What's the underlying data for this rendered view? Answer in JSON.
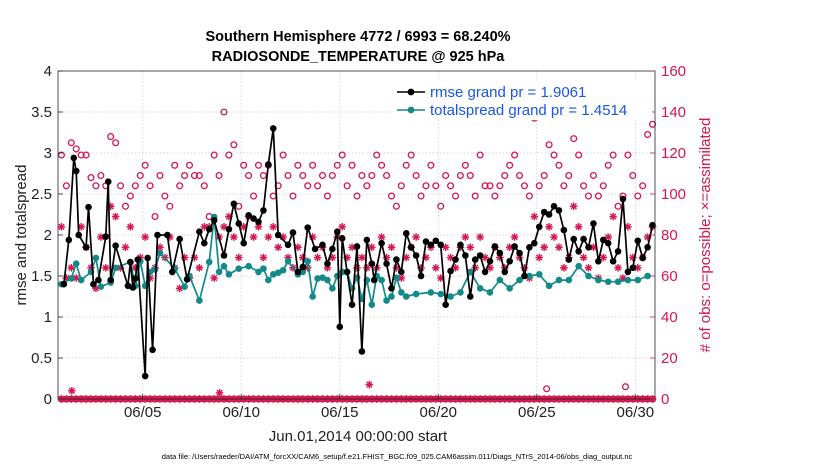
{
  "chart_data": {
    "type": "line",
    "title": "Southern Hemisphere 4772 / 6993 = 68.240%",
    "subtitle": "RADIOSONDE_TEMPERATURE @ 925 hPa",
    "xlabel": "Jun.01,2014 00:00:00 start",
    "ylabel": "rmse and totalspread",
    "ylabel_right": "# of obs: o=possible; ×=assimilated",
    "footer": "data file: /Users/raeder/DAI/ATM_forcXX/CAM6_setup/f.e21.FHIST_BGC.f09_025.CAM6assim.011/Diags_NTrS_2014-06/obs_diag_output.nc",
    "xlim": [
      0.7,
      31.0
    ],
    "ylim": [
      0,
      4
    ],
    "ylim_right": [
      0,
      160
    ],
    "xticks": [
      5,
      10,
      15,
      20,
      25,
      30
    ],
    "xtick_labels": [
      "06/05",
      "06/10",
      "06/15",
      "06/20",
      "06/25",
      "06/30"
    ],
    "yticks": [
      0,
      0.5,
      1,
      1.5,
      2,
      2.5,
      3,
      3.5,
      4
    ],
    "ytick_labels": [
      "0",
      "0.5",
      "1",
      "1.5",
      "2",
      "2.5",
      "3",
      "3.5",
      "4"
    ],
    "yticks_right": [
      0,
      20,
      40,
      60,
      80,
      100,
      120,
      140,
      160
    ],
    "ytick_labels_right": [
      "0",
      "20",
      "40",
      "60",
      "80",
      "100",
      "120",
      "140",
      "160"
    ],
    "legend_location": "top-right",
    "colors": {
      "rmse": "#000000",
      "spread": "#138a8a",
      "obs": "#d5164f",
      "legend_text": "#1a56e0"
    },
    "series": [
      {
        "name": "rmse grand pr = 1.9061",
        "x": [
          1.0,
          1.25,
          1.5,
          1.625,
          1.75,
          2.125,
          2.25,
          2.5,
          2.75,
          3.125,
          3.25,
          3.375,
          3.625,
          4.25,
          4.375,
          4.5,
          4.625,
          4.75,
          5.125,
          5.25,
          5.5,
          5.75,
          6.25,
          6.5,
          6.875,
          7.25,
          7.875,
          8.125,
          8.375,
          8.625,
          9.125,
          9.375,
          9.625,
          9.875,
          10.125,
          10.375,
          10.625,
          10.875,
          11.125,
          11.375,
          11.625,
          11.875,
          12.375,
          12.625,
          12.875,
          13.125,
          13.375,
          13.75,
          14.125,
          14.375,
          14.625,
          14.875,
          15.0,
          15.125,
          15.375,
          15.625,
          15.875,
          16.125,
          16.375,
          16.625,
          16.75,
          17.125,
          17.375,
          17.625,
          17.875,
          18.125,
          18.375,
          18.625,
          18.875,
          19.125,
          19.375,
          19.625,
          19.875,
          20.125,
          20.375,
          20.625,
          20.875,
          21.125,
          21.375,
          21.625,
          21.875,
          22.125,
          22.375,
          22.625,
          22.875,
          23.125,
          23.375,
          23.625,
          23.875,
          24.125,
          24.375,
          24.625,
          24.875,
          25.125,
          25.375,
          25.625,
          25.875,
          26.125,
          26.375,
          26.625,
          26.875,
          27.125,
          27.375,
          27.625,
          27.875,
          28.125,
          28.375,
          28.625,
          28.875,
          29.125,
          29.375,
          29.625,
          29.875,
          30.125,
          30.375,
          30.625,
          30.875
        ],
        "values": [
          1.4,
          1.94,
          2.94,
          2.78,
          2.0,
          1.85,
          2.34,
          1.4,
          1.45,
          1.98,
          2.65,
          1.45,
          1.87,
          1.38,
          1.67,
          1.36,
          1.47,
          1.7,
          0.28,
          1.72,
          0.6,
          2.0,
          2.0,
          1.55,
          1.95,
          1.46,
          2.04,
          1.9,
          2.07,
          2.18,
          1.75,
          2.07,
          2.38,
          2.14,
          1.9,
          2.24,
          2.2,
          2.16,
          2.3,
          2.86,
          3.3,
          2.0,
          1.88,
          2.03,
          1.55,
          1.61,
          2.09,
          1.83,
          1.88,
          1.65,
          1.83,
          2.04,
          0.88,
          1.96,
          1.55,
          1.15,
          1.86,
          0.58,
          1.94,
          1.65,
          1.45,
          1.9,
          1.65,
          1.35,
          1.7,
          1.55,
          2.02,
          1.85,
          1.75,
          1.5,
          1.92,
          1.88,
          1.93,
          1.88,
          1.15,
          1.56,
          1.7,
          1.88,
          1.75,
          1.25,
          1.7,
          1.75,
          1.55,
          1.68,
          1.86,
          1.78,
          1.55,
          1.68,
          1.86,
          1.78,
          1.5,
          1.85,
          1.9,
          2.1,
          2.28,
          2.25,
          2.35,
          2.3,
          2.06,
          1.7,
          1.95,
          1.8,
          1.95,
          1.85,
          2.14,
          1.68,
          1.94,
          1.9,
          1.68,
          1.8,
          2.44,
          1.55,
          1.6,
          1.93,
          1.72,
          1.85,
          2.12
        ],
        "marker": "filled-circle"
      },
      {
        "name": "totalspread grand pr = 1.4514",
        "x": [
          0.875,
          1.375,
          1.625,
          1.875,
          2.375,
          2.625,
          2.875,
          3.375,
          3.625,
          4.375,
          4.625,
          4.875,
          5.125,
          5.375,
          5.625,
          5.875,
          6.625,
          7.125,
          7.375,
          7.875,
          8.375,
          8.625,
          8.875,
          9.125,
          9.375,
          9.875,
          10.375,
          10.875,
          11.125,
          11.375,
          11.625,
          11.875,
          12.125,
          12.375,
          12.875,
          13.125,
          13.375,
          13.625,
          13.875,
          14.125,
          14.375,
          14.625,
          14.875,
          15.125,
          15.375,
          15.625,
          15.875,
          16.125,
          16.375,
          16.625,
          16.875,
          17.125,
          17.375,
          17.625,
          17.875,
          18.125,
          18.375,
          18.875,
          19.625,
          20.125,
          20.625,
          21.125,
          21.625,
          22.125,
          22.625,
          23.125,
          23.625,
          24.125,
          24.625,
          25.125,
          25.625,
          26.125,
          26.625,
          27.125,
          27.625,
          28.125,
          28.625,
          29.125,
          29.625,
          30.125,
          30.625
        ],
        "values": [
          1.4,
          1.47,
          1.65,
          1.45,
          1.55,
          1.72,
          1.37,
          1.42,
          1.6,
          1.67,
          1.38,
          1.68,
          1.38,
          1.55,
          1.58,
          1.78,
          1.59,
          1.37,
          1.5,
          1.2,
          1.67,
          2.22,
          1.55,
          1.62,
          1.52,
          1.59,
          1.62,
          1.55,
          1.59,
          1.45,
          1.52,
          1.54,
          1.57,
          1.68,
          1.52,
          1.55,
          1.68,
          1.25,
          1.47,
          1.48,
          1.45,
          1.35,
          1.5,
          1.55,
          1.55,
          1.35,
          1.48,
          1.22,
          1.45,
          1.15,
          1.5,
          1.45,
          1.2,
          1.25,
          1.48,
          1.3,
          1.25,
          1.28,
          1.3,
          1.28,
          1.25,
          1.3,
          1.55,
          1.35,
          1.3,
          1.45,
          1.35,
          1.45,
          1.5,
          1.52,
          1.38,
          1.45,
          1.45,
          1.62,
          1.5,
          1.45,
          1.43,
          1.43,
          1.45,
          1.45,
          1.5
        ],
        "marker": "filled-circle"
      },
      {
        "name": "# of obs possible",
        "axis": "right",
        "marker": "open-circle",
        "x": [
          0.875,
          1.125,
          1.375,
          1.625,
          1.875,
          2.125,
          2.375,
          2.625,
          2.875,
          3.125,
          3.375,
          3.625,
          3.875,
          4.125,
          4.375,
          4.625,
          4.875,
          5.125,
          5.375,
          5.625,
          5.875,
          6.125,
          6.375,
          6.625,
          6.875,
          7.125,
          7.375,
          7.625,
          7.875,
          8.125,
          8.375,
          8.625,
          8.875,
          9.125,
          9.375,
          9.625,
          9.875,
          10.125,
          10.375,
          10.625,
          10.875,
          11.125,
          11.375,
          11.625,
          11.875,
          12.125,
          12.375,
          12.625,
          12.875,
          13.125,
          13.375,
          13.625,
          13.875,
          14.125,
          14.375,
          14.625,
          14.875,
          15.125,
          15.375,
          15.625,
          15.875,
          16.125,
          16.375,
          16.625,
          16.875,
          17.125,
          17.375,
          17.625,
          17.875,
          18.125,
          18.375,
          18.625,
          18.875,
          19.125,
          19.375,
          19.625,
          19.875,
          20.125,
          20.375,
          20.625,
          20.875,
          21.125,
          21.375,
          21.625,
          21.875,
          22.125,
          22.375,
          22.625,
          22.875,
          23.125,
          23.375,
          23.625,
          23.875,
          24.125,
          24.375,
          24.625,
          24.875,
          25.125,
          25.375,
          25.625,
          25.875,
          26.125,
          26.375,
          26.625,
          26.875,
          27.125,
          27.375,
          27.625,
          27.875,
          28.125,
          28.375,
          28.625,
          28.875,
          29.125,
          29.375,
          29.625,
          29.875,
          30.125,
          30.375,
          30.625,
          30.875
        ],
        "values": [
          119,
          104,
          125,
          122,
          119,
          119,
          108,
          104,
          109,
          104,
          128,
          125,
          104,
          94,
          99,
          104,
          109,
          114,
          104,
          89,
          109,
          99,
          94,
          114,
          104,
          109,
          114,
          109,
          109,
          104,
          89,
          119,
          109,
          140,
          119,
          124,
          94,
          114,
          109,
          99,
          114,
          109,
          114,
          99,
          104,
          119,
          109,
          99,
          114,
          109,
          104,
          114,
          104,
          109,
          99,
          109,
          114,
          119,
          104,
          114,
          99,
          109,
          104,
          109,
          119,
          114,
          109,
          99,
          94,
          104,
          114,
          119,
          109,
          99,
          104,
          114,
          104,
          94,
          109,
          104,
          99,
          109,
          114,
          109,
          99,
          119,
          104,
          104,
          99,
          104,
          109,
          114,
          119,
          109,
          104,
          99,
          137,
          104,
          109,
          124,
          119,
          114,
          104,
          109,
          127,
          119,
          104,
          99,
          109,
          99,
          104,
          114,
          119,
          94,
          99,
          119,
          109,
          99,
          104,
          129,
          134
        ]
      },
      {
        "name": "# of obs assimilated",
        "axis": "right",
        "marker": "asterisk",
        "x": [
          0.875,
          1.125,
          1.375,
          1.625,
          1.875,
          2.125,
          2.375,
          2.625,
          2.875,
          3.125,
          3.375,
          3.625,
          3.875,
          4.125,
          4.375,
          4.625,
          4.875,
          5.125,
          5.375,
          5.625,
          5.875,
          6.125,
          6.375,
          6.625,
          6.875,
          7.125,
          7.375,
          7.625,
          7.875,
          8.125,
          8.375,
          8.625,
          8.875,
          9.125,
          9.375,
          9.625,
          9.875,
          10.125,
          10.375,
          10.625,
          10.875,
          11.125,
          11.375,
          11.625,
          11.875,
          12.125,
          12.375,
          12.625,
          12.875,
          13.125,
          13.375,
          13.625,
          13.875,
          14.125,
          14.375,
          14.625,
          14.875,
          15.125,
          15.375,
          15.625,
          15.875,
          16.125,
          16.375,
          16.625,
          16.875,
          17.125,
          17.375,
          17.625,
          17.875,
          18.125,
          18.375,
          18.625,
          18.875,
          19.125,
          19.375,
          19.625,
          19.875,
          20.125,
          20.375,
          20.625,
          20.875,
          21.125,
          21.375,
          21.625,
          21.875,
          22.125,
          22.375,
          22.625,
          22.875,
          23.125,
          23.375,
          23.625,
          23.875,
          24.125,
          24.375,
          24.625,
          24.875,
          25.125,
          25.375,
          25.625,
          25.875,
          26.125,
          26.375,
          26.625,
          26.875,
          27.125,
          27.375,
          27.625,
          27.875,
          28.125,
          28.375,
          28.625,
          28.875,
          29.125,
          29.375,
          29.625,
          29.875,
          30.125,
          30.375,
          30.625,
          30.875
        ],
        "values": [
          84,
          59,
          64,
          59,
          84,
          74,
          64,
          54,
          79,
          64,
          94,
          89,
          64,
          74,
          84,
          64,
          69,
          79,
          59,
          64,
          74,
          69,
          79,
          64,
          54,
          69,
          59,
          69,
          64,
          84,
          84,
          59,
          79,
          84,
          89,
          79,
          69,
          84,
          89,
          79,
          84,
          69,
          79,
          84,
          74,
          79,
          69,
          64,
          74,
          69,
          64,
          79,
          69,
          74,
          64,
          69,
          79,
          84,
          69,
          74,
          64,
          69,
          64,
          74,
          64,
          79,
          69,
          74,
          64,
          59,
          69,
          74,
          79,
          64,
          69,
          74,
          64,
          59,
          74,
          69,
          64,
          74,
          79,
          74,
          64,
          79,
          69,
          64,
          74,
          69,
          64,
          74,
          79,
          69,
          64,
          59,
          89,
          69,
          74,
          84,
          79,
          74,
          64,
          69,
          94,
          84,
          69,
          64,
          74,
          59,
          69,
          79,
          89,
          64,
          59,
          84,
          69,
          64,
          69,
          79,
          84
        ]
      }
    ],
    "obs_bottom": {
      "possible": [
        {
          "x": 25.5,
          "v": 5
        },
        {
          "x": 29.5,
          "v": 6
        }
      ],
      "assimilated_nonzero": [
        {
          "x": 1.4,
          "v": 4
        },
        {
          "x": 8.9,
          "v": 3
        },
        {
          "x": 16.5,
          "v": 7
        }
      ]
    }
  }
}
